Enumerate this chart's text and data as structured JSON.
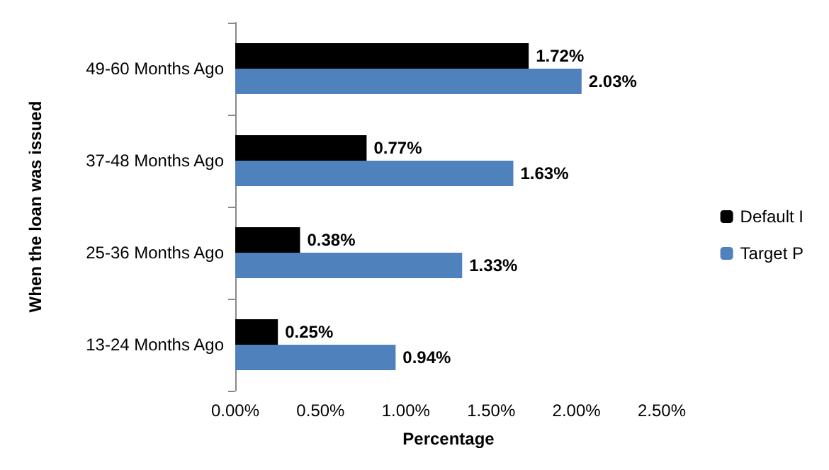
{
  "chart_data": {
    "type": "bar",
    "orientation": "horizontal",
    "xlabel": "Percentage",
    "ylabel": "When the loan was issued",
    "categories": [
      "49-60 Months Ago",
      "37-48 Months Ago",
      "25-36 Months Ago",
      "13-24 Months Ago"
    ],
    "series": [
      {
        "name": "Default I",
        "color": "#000000",
        "values": [
          1.72,
          0.77,
          0.38,
          0.25
        ],
        "value_labels": [
          "1.72%",
          "0.77%",
          "0.38%",
          "0.25%"
        ]
      },
      {
        "name": "Target P",
        "color": "#4f81bd",
        "values": [
          2.03,
          1.63,
          1.33,
          0.94
        ],
        "value_labels": [
          "2.03%",
          "1.63%",
          "1.33%",
          "0.94%"
        ]
      }
    ],
    "xlim": [
      0,
      2.5
    ],
    "xticks": [
      {
        "value": 0,
        "label": "0.00%"
      },
      {
        "value": 0.5,
        "label": "0.50%"
      },
      {
        "value": 1,
        "label": "1.00%"
      },
      {
        "value": 1.5,
        "label": "1.50%"
      },
      {
        "value": 2,
        "label": "2.00%"
      },
      {
        "value": 2.5,
        "label": "2.50%"
      }
    ],
    "grid": false,
    "legend": "right"
  }
}
